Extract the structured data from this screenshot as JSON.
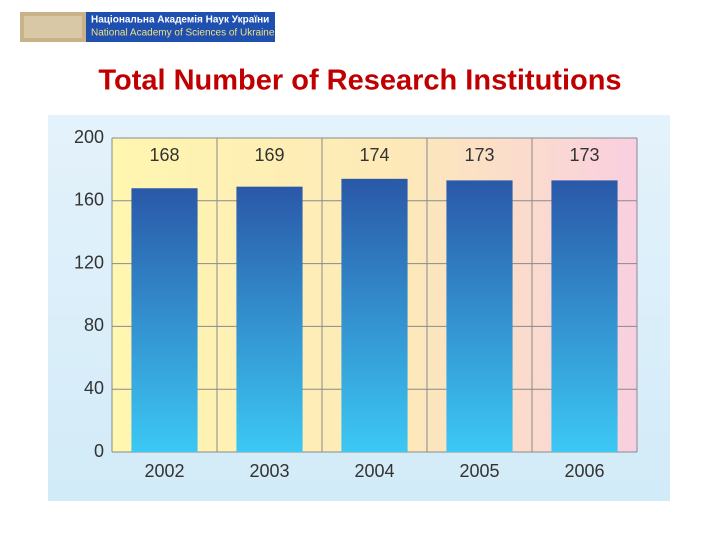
{
  "header": {
    "logo_uk": "Національна Академія Наук України",
    "logo_en": "National Academy of Sciences of Ukraine"
  },
  "chart_data": {
    "type": "bar",
    "title": "Total Number of Research Institutions",
    "categories": [
      "2002",
      "2003",
      "2004",
      "2005",
      "2006"
    ],
    "values": [
      168,
      169,
      174,
      173,
      173
    ],
    "color": "#2a58a8",
    "ylim": [
      0,
      200
    ],
    "yticks": [
      0,
      40,
      80,
      120,
      160,
      200
    ],
    "grid": true
  }
}
